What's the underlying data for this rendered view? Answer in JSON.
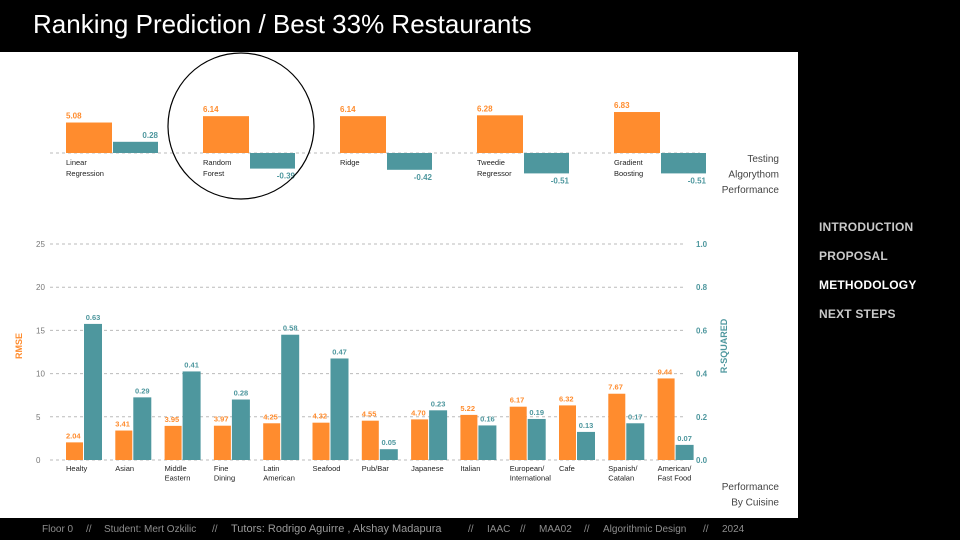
{
  "title": "Ranking Prediction / Best 33% Restaurants",
  "colors": {
    "rmse": "#FF8C2E",
    "r2": "#4E979E",
    "grid": "#bbbbbb",
    "text": "#222222"
  },
  "nav": {
    "items": [
      "INTRODUCTION",
      "PROPOSAL",
      "METHODOLOGY",
      "NEXT STEPS"
    ],
    "active": "METHODOLOGY"
  },
  "footer": {
    "floor": "Floor 0",
    "student": "Student: Mert Ozkilic",
    "tutors": "Tutors: Rodrigo Aguirre , Akshay Madapura",
    "institute": "IAAC",
    "program": "MAA02",
    "course": "Algorithmic Design",
    "year": "2024",
    "separator": "//"
  },
  "chart_data": [
    {
      "type": "bar",
      "caption": [
        "Testing",
        "Algorythom",
        "Performance"
      ],
      "categories": [
        [
          "Linear",
          "Regression"
        ],
        [
          "Random",
          "Forest"
        ],
        [
          "Ridge"
        ],
        [
          "Tweedie",
          "Regressor"
        ],
        [
          "Gradient",
          "Boosting"
        ]
      ],
      "series": [
        {
          "values": [
            5.08,
            6.14,
            6.14,
            6.28,
            6.83
          ]
        },
        {
          "values": [
            0.28,
            -0.39,
            -0.42,
            -0.51,
            -0.51
          ]
        }
      ],
      "highlight": [
        "Random",
        "Forest"
      ]
    },
    {
      "type": "bar",
      "caption": [
        "Performance",
        "By Cuisine"
      ],
      "categories": [
        [
          "Healty"
        ],
        [
          "Asian"
        ],
        [
          "Middle",
          "Eastern"
        ],
        [
          "Fine",
          "Dining"
        ],
        [
          "Latin",
          "American"
        ],
        [
          "Seafood"
        ],
        [
          "Pub/Bar"
        ],
        [
          "Japanese"
        ],
        [
          "Italian"
        ],
        [
          "European/",
          "International"
        ],
        [
          "Cafe"
        ],
        [
          "Spanish/",
          "Catalan"
        ],
        [
          "American/",
          "Fast Food"
        ]
      ],
      "ylabel": "RMSE",
      "y2label": "R-SQUARED",
      "ylim": [
        0,
        25
      ],
      "y2lim": [
        0,
        1.0
      ],
      "yticks": [
        "0",
        "5",
        "10",
        "15",
        "20",
        "25"
      ],
      "y2ticks": [
        "0.0",
        "0.2",
        "0.4",
        "0.6",
        "0.8",
        "1.0"
      ],
      "series": [
        {
          "name": "RMSE",
          "axis": "left",
          "values": [
            2.04,
            3.41,
            3.95,
            3.97,
            4.25,
            4.32,
            4.55,
            4.7,
            5.22,
            6.17,
            6.32,
            7.67,
            9.44
          ]
        },
        {
          "name": "R-SQUARED",
          "axis": "right",
          "values": [
            0.63,
            0.29,
            0.41,
            0.28,
            0.58,
            0.47,
            0.05,
            0.23,
            0.16,
            0.19,
            0.13,
            0.17,
            0.07
          ]
        }
      ]
    }
  ]
}
